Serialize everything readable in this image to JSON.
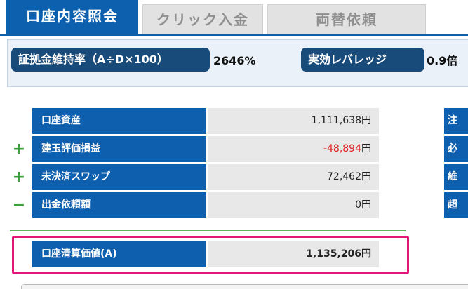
{
  "tabs": [
    {
      "label": "口座内容照会"
    },
    {
      "label": "クリック入金"
    },
    {
      "label": "両替依頼"
    }
  ],
  "summary": {
    "margin_ratio_label": "証拠金維持率（A÷D×100）",
    "margin_ratio_value": "2646%",
    "leverage_label": "実効レバレッジ",
    "leverage_value": "0.9倍"
  },
  "account_table": {
    "rows": [
      {
        "sign": "",
        "label": "口座資産",
        "value": "1,111,638",
        "unit": "円"
      },
      {
        "sign": "+",
        "label": "建玉評価損益",
        "value": "-48,894",
        "unit": "円"
      },
      {
        "sign": "+",
        "label": "未決済スワップ",
        "value": "72,462",
        "unit": "円"
      },
      {
        "sign": "−",
        "label": "出金依頼額",
        "value": "0",
        "unit": "円"
      }
    ],
    "total": {
      "label": "口座清算価値(A)",
      "value": "1,135,206",
      "unit": "円"
    }
  },
  "right_column": {
    "labels": [
      "注",
      "必",
      "維",
      "超"
    ]
  },
  "colors": {
    "tab_blue": "#0d60ae",
    "label_blue": "#0e5fae",
    "negative_red": "#e02020",
    "plus_green": "#3aa03a",
    "highlight_pink": "#e2177a"
  }
}
